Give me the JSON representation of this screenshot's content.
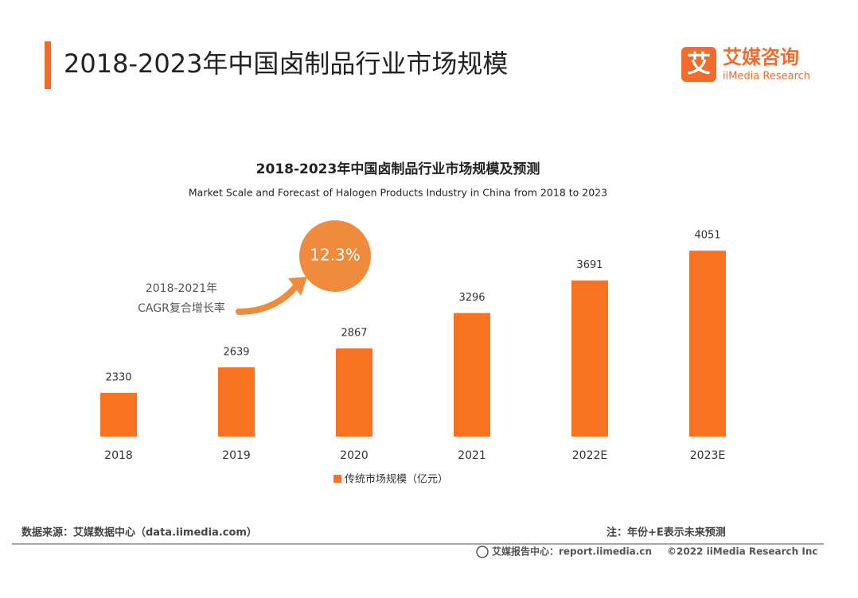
{
  "header": {
    "title": "2018-2023年中国卤制品行业市场规模",
    "logo_cn": "艾媒咨询",
    "logo_en": "iiMedia Research",
    "logo_mark": "艾"
  },
  "chart_data": {
    "type": "bar",
    "title": "2018-2023年中国卤制品行业市场规模及预测",
    "subtitle": "Market Scale and Forecast of Halogen Products Industry in China from 2018  to 2023",
    "categories": [
      "2018",
      "2019",
      "2020",
      "2021",
      "2022E",
      "2023E"
    ],
    "series": [
      {
        "name": "传统市场规模（亿元）",
        "color": "#f77321",
        "values": [
          2330,
          2639,
          2867,
          3296,
          3691,
          4051
        ]
      }
    ],
    "ylim": [
      1800,
      4400
    ],
    "annotation": {
      "lines": [
        "2018-2021年",
        "CAGR复合增长率"
      ],
      "value": "12.3%",
      "color": "#f08a3c"
    }
  },
  "footer": {
    "source": "数据来源：艾媒数据中心（data.iimedia.com）",
    "note": "注：年份+E表示未来预测",
    "report": "艾媒报告中心：report.iimedia.cn",
    "copyright": "©2022  iiMedia Research  Inc"
  }
}
